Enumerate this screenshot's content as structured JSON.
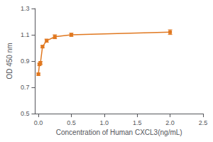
{
  "chart_data": {
    "type": "line",
    "x": [
      0.0,
      0.016,
      0.031,
      0.063,
      0.125,
      0.25,
      0.5,
      2.0
    ],
    "values": [
      0.8,
      0.875,
      0.885,
      1.01,
      1.055,
      1.085,
      1.1,
      1.12
    ],
    "yerr": [
      0.008,
      0.008,
      0.012,
      0.008,
      0.012,
      0.015,
      0.012,
      0.018
    ],
    "color": "#E07820",
    "marker": "square",
    "xlabel": "Concentration of Human CXCL3(ng/mL)",
    "ylabel": "OD 450 nm",
    "xlim": [
      -0.05,
      2.5
    ],
    "ylim": [
      0.5,
      1.3
    ],
    "xticks": [
      {
        "value": 0,
        "label": "0.0"
      },
      0.5,
      {
        "value": 1.0,
        "label": "1.0"
      },
      1.5,
      {
        "value": 2.0,
        "label": "2.0"
      },
      2.5
    ],
    "yticks": [
      0.5,
      0.7,
      0.9,
      1.1,
      1.3
    ],
    "grid": false
  }
}
